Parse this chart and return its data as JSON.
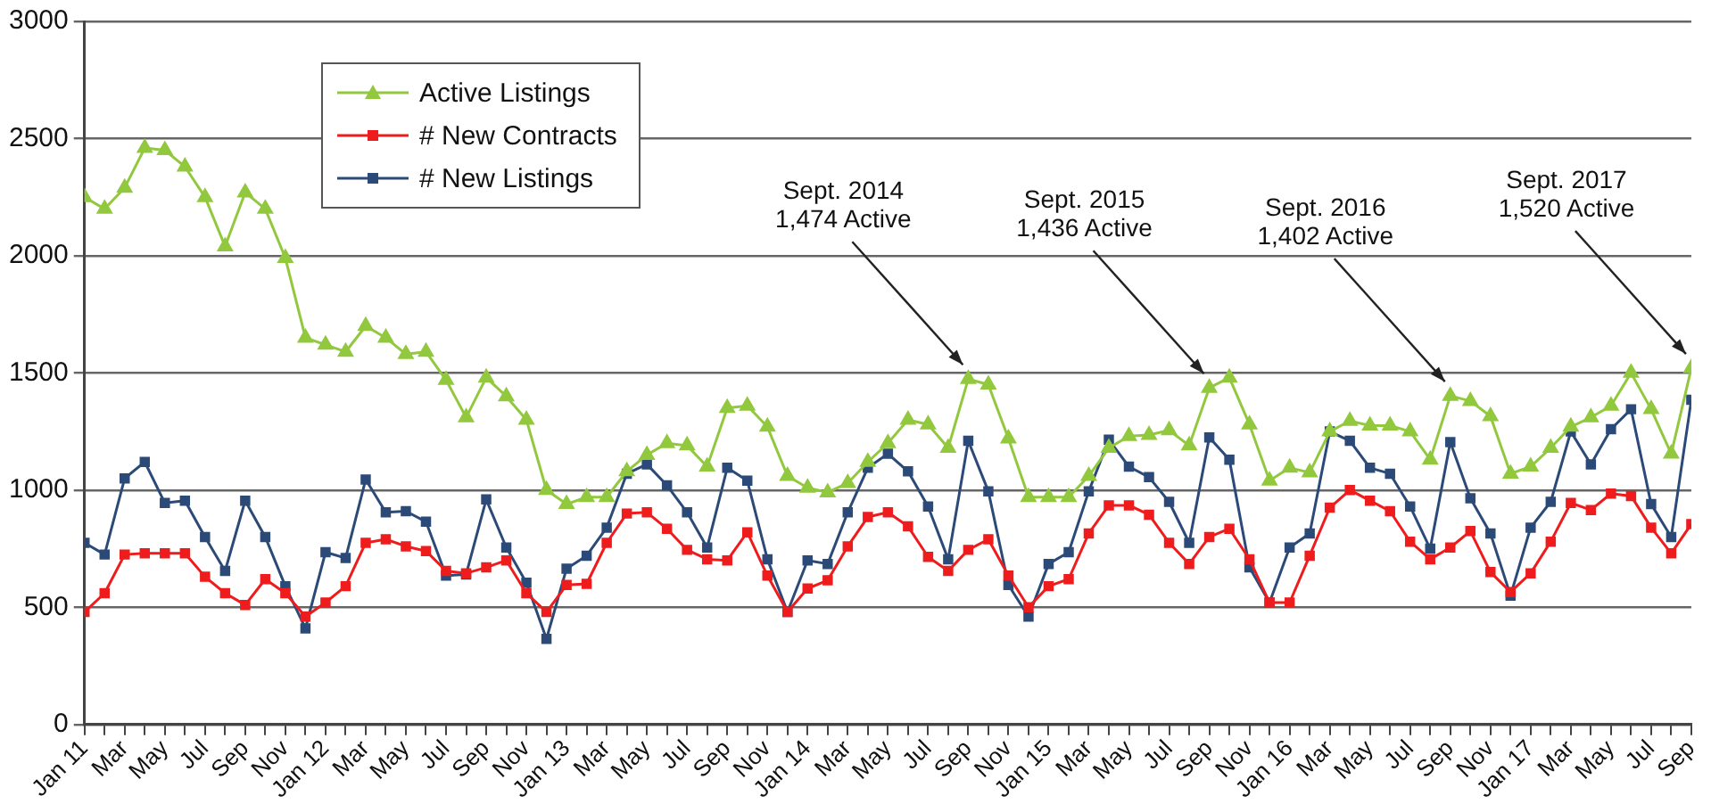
{
  "chart_data": {
    "type": "line",
    "x": [
      "2011-01",
      "2011-02",
      "2011-03",
      "2011-04",
      "2011-05",
      "2011-06",
      "2011-07",
      "2011-08",
      "2011-09",
      "2011-10",
      "2011-11",
      "2011-12",
      "2012-01",
      "2012-02",
      "2012-03",
      "2012-04",
      "2012-05",
      "2012-06",
      "2012-07",
      "2012-08",
      "2012-09",
      "2012-10",
      "2012-11",
      "2012-12",
      "2013-01",
      "2013-02",
      "2013-03",
      "2013-04",
      "2013-05",
      "2013-06",
      "2013-07",
      "2013-08",
      "2013-09",
      "2013-10",
      "2013-11",
      "2013-12",
      "2014-01",
      "2014-02",
      "2014-03",
      "2014-04",
      "2014-05",
      "2014-06",
      "2014-07",
      "2014-08",
      "2014-09",
      "2014-10",
      "2014-11",
      "2014-12",
      "2015-01",
      "2015-02",
      "2015-03",
      "2015-04",
      "2015-05",
      "2015-06",
      "2015-07",
      "2015-08",
      "2015-09",
      "2015-10",
      "2015-11",
      "2015-12",
      "2016-01",
      "2016-02",
      "2016-03",
      "2016-04",
      "2016-05",
      "2016-06",
      "2016-07",
      "2016-08",
      "2016-09",
      "2016-10",
      "2016-11",
      "2016-12",
      "2017-01",
      "2017-02",
      "2017-03",
      "2017-04",
      "2017-05",
      "2017-06",
      "2017-07",
      "2017-08",
      "2017-09"
    ],
    "series": [
      {
        "name": "Active Listings",
        "color": "#92c83e",
        "marker": "triangle",
        "values": [
          2250,
          2200,
          2290,
          2460,
          2450,
          2380,
          2250,
          2040,
          2270,
          2200,
          1990,
          1650,
          1620,
          1590,
          1700,
          1650,
          1580,
          1590,
          1470,
          1310,
          1480,
          1400,
          1300,
          1000,
          940,
          970,
          970,
          1080,
          1150,
          1200,
          1190,
          1100,
          1350,
          1360,
          1270,
          1060,
          1010,
          990,
          1030,
          1120,
          1200,
          1300,
          1280,
          1180,
          1474,
          1450,
          1220,
          970,
          970,
          970,
          1060,
          1180,
          1230,
          1235,
          1255,
          1190,
          1436,
          1480,
          1280,
          1040,
          1095,
          1075,
          1250,
          1295,
          1275,
          1275,
          1250,
          1130,
          1402,
          1380,
          1315,
          1070,
          1100,
          1180,
          1270,
          1310,
          1360,
          1500,
          1345,
          1155,
          1520
        ]
      },
      {
        "name": "# New Contracts",
        "color": "#ee1c1c",
        "marker": "square",
        "values": [
          480,
          560,
          725,
          730,
          730,
          730,
          630,
          560,
          510,
          620,
          560,
          460,
          520,
          590,
          775,
          790,
          760,
          740,
          655,
          645,
          670,
          700,
          560,
          480,
          595,
          600,
          775,
          900,
          905,
          835,
          745,
          705,
          700,
          820,
          635,
          480,
          580,
          615,
          760,
          885,
          905,
          845,
          715,
          655,
          745,
          790,
          635,
          500,
          590,
          620,
          815,
          935,
          935,
          895,
          775,
          685,
          800,
          835,
          705,
          520,
          520,
          720,
          925,
          1000,
          955,
          910,
          780,
          705,
          755,
          825,
          650,
          565,
          645,
          780,
          945,
          915,
          985,
          975,
          840,
          730,
          855
        ]
      },
      {
        "name": "# New Listings",
        "color": "#2b4a78",
        "marker": "square",
        "values": [
          775,
          725,
          1050,
          1120,
          945,
          955,
          800,
          655,
          955,
          800,
          590,
          410,
          735,
          710,
          1045,
          905,
          910,
          865,
          635,
          640,
          960,
          755,
          605,
          365,
          665,
          720,
          840,
          1070,
          1110,
          1020,
          905,
          755,
          1095,
          1040,
          705,
          480,
          700,
          685,
          905,
          1095,
          1155,
          1080,
          930,
          705,
          1210,
          995,
          595,
          460,
          685,
          735,
          995,
          1215,
          1100,
          1055,
          950,
          775,
          1225,
          1130,
          670,
          520,
          755,
          815,
          1250,
          1210,
          1095,
          1070,
          930,
          750,
          1205,
          965,
          815,
          550,
          840,
          950,
          1250,
          1110,
          1260,
          1345,
          940,
          800,
          1385
        ]
      }
    ],
    "xlim": [
      "2011-01",
      "2017-09"
    ],
    "xticks": [
      {
        "value": "2011-01",
        "label": "Jan 11"
      },
      {
        "value": "2011-02",
        "label": null
      },
      {
        "value": "2011-03",
        "label": "Mar"
      },
      {
        "value": "2011-04",
        "label": null
      },
      {
        "value": "2011-05",
        "label": "May"
      },
      {
        "value": "2011-06",
        "label": null
      },
      {
        "value": "2011-07",
        "label": "Jul"
      },
      {
        "value": "2011-08",
        "label": null
      },
      {
        "value": "2011-09",
        "label": "Sep"
      },
      {
        "value": "2011-10",
        "label": null
      },
      {
        "value": "2011-11",
        "label": "Nov"
      },
      {
        "value": "2011-12",
        "label": null
      },
      {
        "value": "2012-01",
        "label": "Jan 12"
      },
      {
        "value": "2012-02",
        "label": null
      },
      {
        "value": "2012-03",
        "label": "Mar"
      },
      {
        "value": "2012-04",
        "label": null
      },
      {
        "value": "2012-05",
        "label": "May"
      },
      {
        "value": "2012-06",
        "label": null
      },
      {
        "value": "2012-07",
        "label": "Jul"
      },
      {
        "value": "2012-08",
        "label": null
      },
      {
        "value": "2012-09",
        "label": "Sep"
      },
      {
        "value": "2012-10",
        "label": null
      },
      {
        "value": "2012-11",
        "label": "Nov"
      },
      {
        "value": "2012-12",
        "label": null
      },
      {
        "value": "2013-01",
        "label": "Jan 13"
      },
      {
        "value": "2013-02",
        "label": null
      },
      {
        "value": "2013-03",
        "label": "Mar"
      },
      {
        "value": "2013-04",
        "label": null
      },
      {
        "value": "2013-05",
        "label": "May"
      },
      {
        "value": "2013-06",
        "label": null
      },
      {
        "value": "2013-07",
        "label": "Jul"
      },
      {
        "value": "2013-08",
        "label": null
      },
      {
        "value": "2013-09",
        "label": "Sep"
      },
      {
        "value": "2013-10",
        "label": null
      },
      {
        "value": "2013-11",
        "label": "Nov"
      },
      {
        "value": "2013-12",
        "label": null
      },
      {
        "value": "2014-01",
        "label": "Jan 14"
      },
      {
        "value": "2014-02",
        "label": null
      },
      {
        "value": "2014-03",
        "label": "Mar"
      },
      {
        "value": "2014-04",
        "label": null
      },
      {
        "value": "2014-05",
        "label": "May"
      },
      {
        "value": "2014-06",
        "label": null
      },
      {
        "value": "2014-07",
        "label": "Jul"
      },
      {
        "value": "2014-08",
        "label": null
      },
      {
        "value": "2014-09",
        "label": "Sep"
      },
      {
        "value": "2014-10",
        "label": null
      },
      {
        "value": "2014-11",
        "label": "Nov"
      },
      {
        "value": "2014-12",
        "label": null
      },
      {
        "value": "2015-01",
        "label": "Jan 15"
      },
      {
        "value": "2015-02",
        "label": null
      },
      {
        "value": "2015-03",
        "label": "Mar"
      },
      {
        "value": "2015-04",
        "label": null
      },
      {
        "value": "2015-05",
        "label": "May"
      },
      {
        "value": "2015-06",
        "label": null
      },
      {
        "value": "2015-07",
        "label": "Jul"
      },
      {
        "value": "2015-08",
        "label": null
      },
      {
        "value": "2015-09",
        "label": "Sep"
      },
      {
        "value": "2015-10",
        "label": null
      },
      {
        "value": "2015-11",
        "label": "Nov"
      },
      {
        "value": "2015-12",
        "label": null
      },
      {
        "value": "2016-01",
        "label": "Jan 16"
      },
      {
        "value": "2016-02",
        "label": null
      },
      {
        "value": "2016-03",
        "label": "Mar"
      },
      {
        "value": "2016-04",
        "label": null
      },
      {
        "value": "2016-05",
        "label": "May"
      },
      {
        "value": "2016-06",
        "label": null
      },
      {
        "value": "2016-07",
        "label": "Jul"
      },
      {
        "value": "2016-08",
        "label": null
      },
      {
        "value": "2016-09",
        "label": "Sep"
      },
      {
        "value": "2016-10",
        "label": null
      },
      {
        "value": "2016-11",
        "label": "Nov"
      },
      {
        "value": "2016-12",
        "label": null
      },
      {
        "value": "2017-01",
        "label": "Jan 17"
      },
      {
        "value": "2017-02",
        "label": null
      },
      {
        "value": "2017-03",
        "label": "Mar"
      },
      {
        "value": "2017-04",
        "label": null
      },
      {
        "value": "2017-05",
        "label": "May"
      },
      {
        "value": "2017-06",
        "label": null
      },
      {
        "value": "2017-07",
        "label": "Jul"
      },
      {
        "value": "2017-08",
        "label": null
      },
      {
        "value": "2017-09",
        "label": "Sep"
      }
    ],
    "ylim": [
      0,
      3000
    ],
    "yticks": [
      0,
      500,
      1000,
      1500,
      2000,
      2500,
      3000
    ],
    "grid": "y",
    "legend": "top left",
    "line_style": "solid",
    "annotations": [
      {
        "text": "Sept. 2014\n1,474 Active",
        "x": "2014-09",
        "y": 1474
      },
      {
        "text": "Sept. 2015\n1,436 Active",
        "x": "2015-09",
        "y": 1436
      },
      {
        "text": "Sept. 2016\n1,402 Active",
        "x": "2016-09",
        "y": 1402
      },
      {
        "text": "Sept. 2017\n1,520 Active",
        "x": "2017-09",
        "y": 1520
      }
    ]
  }
}
